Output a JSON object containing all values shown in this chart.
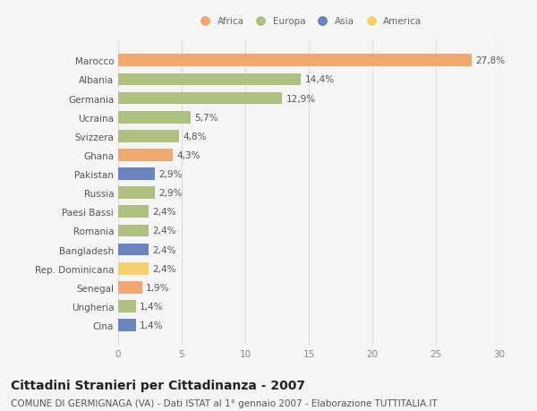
{
  "categories": [
    "Marocco",
    "Albania",
    "Germania",
    "Ucraina",
    "Svizzera",
    "Ghana",
    "Pakistan",
    "Russia",
    "Paesi Bassi",
    "Romania",
    "Bangladesh",
    "Rep. Dominicana",
    "Senegal",
    "Ungheria",
    "Cina"
  ],
  "values": [
    27.8,
    14.4,
    12.9,
    5.7,
    4.8,
    4.3,
    2.9,
    2.9,
    2.4,
    2.4,
    2.4,
    2.4,
    1.9,
    1.4,
    1.4
  ],
  "labels": [
    "27,8%",
    "14,4%",
    "12,9%",
    "5,7%",
    "4,8%",
    "4,3%",
    "2,9%",
    "2,9%",
    "2,4%",
    "2,4%",
    "2,4%",
    "2,4%",
    "1,9%",
    "1,4%",
    "1,4%"
  ],
  "colors": [
    "#f0a870",
    "#afc180",
    "#afc180",
    "#afc180",
    "#afc180",
    "#f0a870",
    "#6b85c0",
    "#afc180",
    "#afc180",
    "#afc180",
    "#6b85c0",
    "#f5d070",
    "#f0a870",
    "#afc180",
    "#6b85c0"
  ],
  "legend_labels": [
    "Africa",
    "Europa",
    "Asia",
    "America"
  ],
  "legend_colors": [
    "#f0a870",
    "#afc180",
    "#6b85c0",
    "#f5d070"
  ],
  "xlim": [
    0,
    30
  ],
  "xticks": [
    0,
    5,
    10,
    15,
    20,
    25,
    30
  ],
  "title": "Cittadini Stranieri per Cittadinanza - 2007",
  "subtitle": "COMUNE DI GERMIGNAGA (VA) - Dati ISTAT al 1° gennaio 2007 - Elaborazione TUTTITALIA.IT",
  "bg_color": "#f5f5f5",
  "bar_height": 0.65,
  "title_fontsize": 10,
  "subtitle_fontsize": 7.5,
  "label_fontsize": 7.5,
  "tick_fontsize": 7.5,
  "value_label_fontsize": 7.5
}
